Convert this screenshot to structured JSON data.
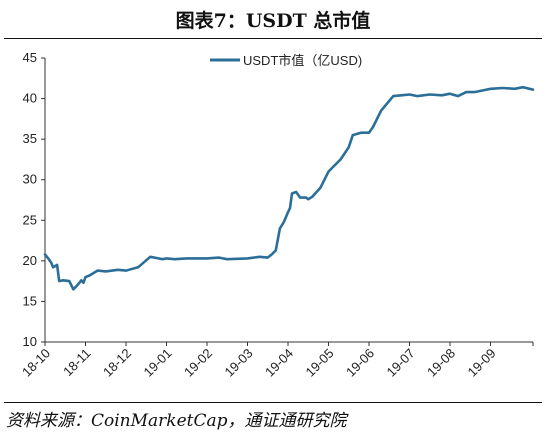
{
  "header": {
    "title": "图表7：USDT 总市值"
  },
  "footer": {
    "source": "资料来源：CoinMarketCap，通证通研究院"
  },
  "chart_data": {
    "type": "line",
    "title": "图表7：USDT 总市值",
    "xlabel": "",
    "ylabel": "",
    "ylim": [
      10,
      45
    ],
    "yticks": [
      10,
      15,
      20,
      25,
      30,
      35,
      40,
      45
    ],
    "categories": [
      "18-10",
      "18-11",
      "18-12",
      "19-01",
      "19-02",
      "19-03",
      "19-04",
      "19-05",
      "19-06",
      "19-07",
      "19-08",
      "19-09"
    ],
    "legend_position": "top-center",
    "grid": false,
    "series": [
      {
        "name": "USDT市值（亿USD)",
        "color": "#2b6f99",
        "x": [
          0,
          0.08,
          0.15,
          0.2,
          0.3,
          0.35,
          0.45,
          0.6,
          0.7,
          0.8,
          0.9,
          0.95,
          1.0,
          1.1,
          1.2,
          1.3,
          1.5,
          1.8,
          2.0,
          2.3,
          2.6,
          2.8,
          2.9,
          3.0,
          3.2,
          3.5,
          4.0,
          4.3,
          4.5,
          5.0,
          5.3,
          5.5,
          5.6,
          5.7,
          5.8,
          5.9,
          6.0,
          6.05,
          6.1,
          6.2,
          6.3,
          6.45,
          6.5,
          6.6,
          6.8,
          7.0,
          7.1,
          7.3,
          7.5,
          7.6,
          7.8,
          8.0,
          8.1,
          8.3,
          8.6,
          8.8,
          9.0,
          9.2,
          9.5,
          9.8,
          10.0,
          10.2,
          10.4,
          10.6,
          10.8,
          11.0,
          11.3,
          11.6,
          11.8,
          12.05
        ],
        "values": [
          20.8,
          20.3,
          19.8,
          19.2,
          19.5,
          17.5,
          17.6,
          17.5,
          16.5,
          17.0,
          17.6,
          17.3,
          18.0,
          18.2,
          18.5,
          18.8,
          18.7,
          18.9,
          18.8,
          19.2,
          20.5,
          20.3,
          20.2,
          20.3,
          20.2,
          20.3,
          20.3,
          20.4,
          20.2,
          20.3,
          20.5,
          20.4,
          20.8,
          21.3,
          24.0,
          24.8,
          26.0,
          26.5,
          28.3,
          28.5,
          27.8,
          27.8,
          27.6,
          27.9,
          29.0,
          31.0,
          31.5,
          32.5,
          34.0,
          35.5,
          35.8,
          35.8,
          36.5,
          38.5,
          40.3,
          40.4,
          40.5,
          40.3,
          40.5,
          40.4,
          40.6,
          40.3,
          40.8,
          40.8,
          41.0,
          41.2,
          41.3,
          41.2,
          41.4,
          41.1
        ]
      }
    ]
  }
}
